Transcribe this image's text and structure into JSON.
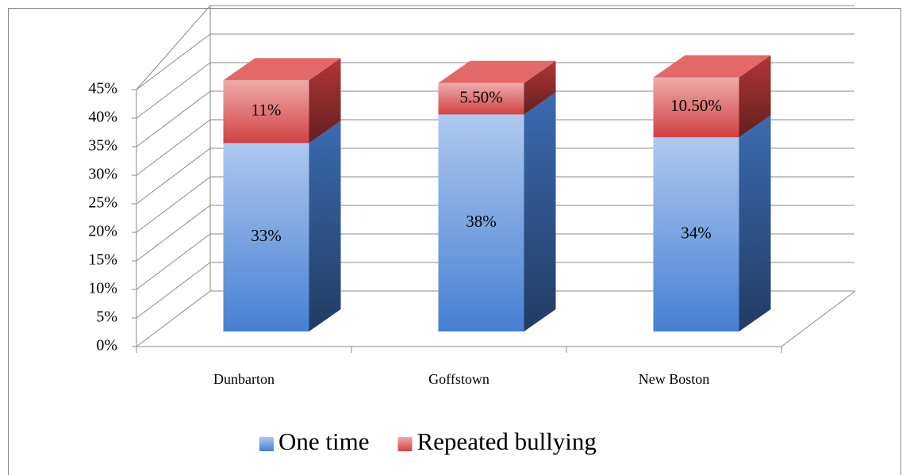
{
  "chart_data": {
    "type": "bar3d_stacked",
    "categories": [
      "Dunbarton",
      "Goffstown",
      "New Boston"
    ],
    "series": [
      {
        "name": "One time",
        "color": "#4a86dd",
        "values": [
          33,
          38,
          34
        ],
        "value_labels": [
          "33%",
          "38%",
          "34%"
        ]
      },
      {
        "name": "Repeated bullying",
        "color": "#dc4444",
        "values": [
          11,
          5.5,
          10.5
        ],
        "value_labels": [
          "11%",
          "5.50%",
          "10.50%"
        ]
      }
    ],
    "ylim": [
      0,
      50
    ],
    "yticks": [
      {
        "value": 0,
        "label": "0%"
      },
      {
        "value": 5,
        "label": "5%"
      },
      {
        "value": 10,
        "label": "10%"
      },
      {
        "value": 15,
        "label": "15%"
      },
      {
        "value": 20,
        "label": "20%"
      },
      {
        "value": 25,
        "label": "25%"
      },
      {
        "value": 30,
        "label": "30%"
      },
      {
        "value": 35,
        "label": "35%"
      },
      {
        "value": 40,
        "label": "40%"
      },
      {
        "value": 45,
        "label": "45%"
      }
    ],
    "grid": true,
    "legend": "bottom"
  }
}
